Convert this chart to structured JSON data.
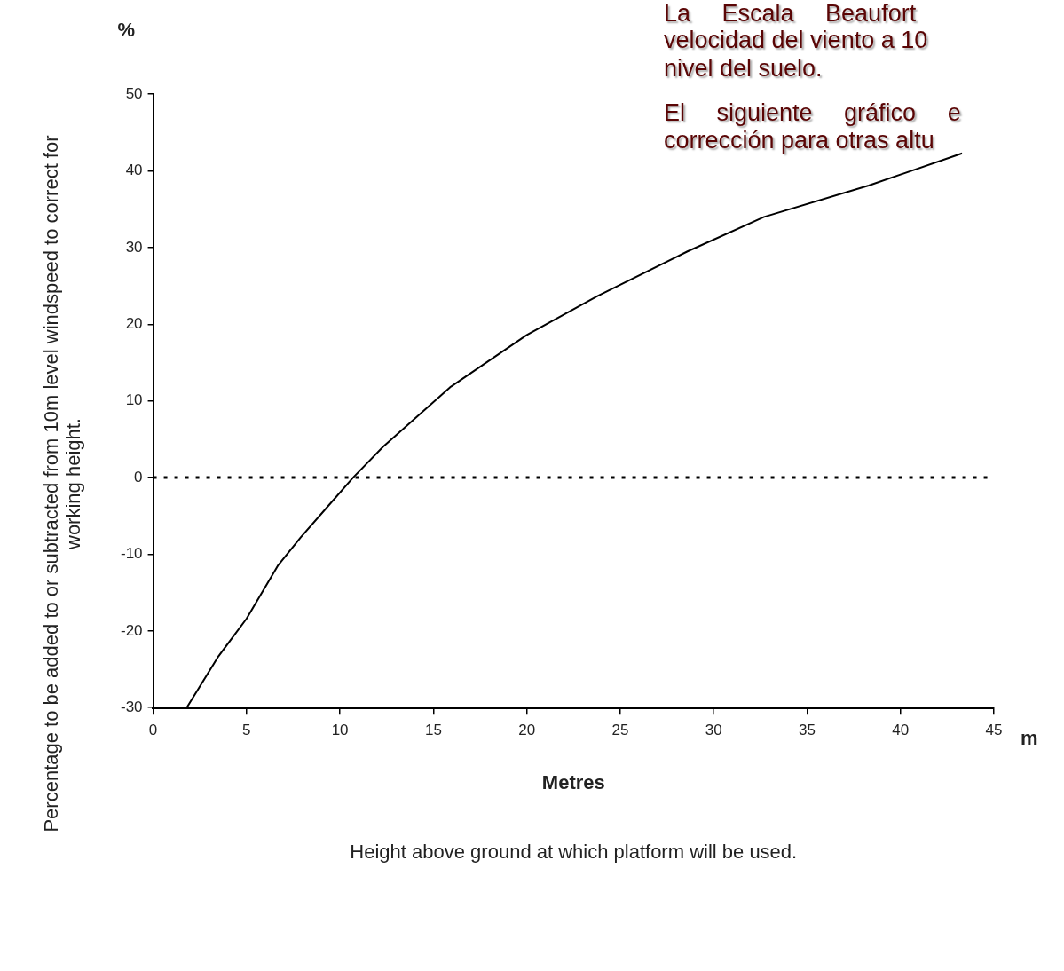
{
  "chart_data": {
    "type": "line",
    "xlabel": "Metres",
    "ylabel": "Percentage to be added to or subtracted from 10m level windspeed to correct for working height.",
    "annotations": [
      "%",
      "m",
      "Height above ground at which platform will be used.",
      "La Escala Beaufort",
      "velocidad del viento a 10",
      "nivel del suelo.",
      "El siguiente gráfico e",
      "corrección para otras altu"
    ],
    "series": [
      {
        "color": "#000000",
        "x": [
          1.8,
          3.5,
          5,
          6.7,
          7.9,
          9.3,
          10.7,
          12.3,
          15.9,
          20,
          23.8,
          28.6,
          32.7,
          38.3,
          43.3
        ],
        "values": [
          -30,
          -23.3,
          -18.4,
          -11.4,
          -7.8,
          -3.9,
          0,
          4,
          11.8,
          18.6,
          23.7,
          29.5,
          34,
          38.1,
          42.3
        ]
      }
    ],
    "xlim": [
      0,
      45
    ],
    "xticks": [
      0,
      5,
      10,
      15,
      20,
      25,
      30,
      35,
      40,
      45
    ],
    "ylim": [
      -30,
      50
    ],
    "yticks": [
      -30,
      -20,
      -10,
      0,
      10,
      20,
      30,
      40,
      50
    ],
    "ref_lines": [
      {
        "axis": "y",
        "value": 0,
        "color": "#000000",
        "line_style": "dotted"
      }
    ],
    "grid": false,
    "legend": false,
    "marker": "none",
    "line_style": "solid"
  }
}
